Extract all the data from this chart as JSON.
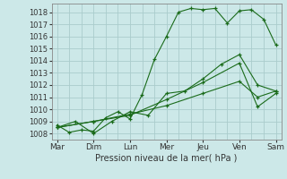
{
  "xlabel": "Pression niveau de la mer( hPa )",
  "bg_color": "#cce8e8",
  "grid_color": "#aacccc",
  "line_color": "#1a6b1a",
  "xtick_labels": [
    "Mar",
    "Dim",
    "Lun",
    "Mer",
    "Jeu",
    "Ven",
    "Sam"
  ],
  "xlim": [
    -0.15,
    6.15
  ],
  "ylim": [
    1007.5,
    1018.7
  ],
  "yticks": [
    1008,
    1009,
    1010,
    1011,
    1012,
    1013,
    1014,
    1015,
    1016,
    1017,
    1018
  ],
  "series": [
    {
      "x": [
        0,
        0.33,
        0.67,
        1.0,
        1.33,
        1.67,
        2.0,
        2.33,
        2.67,
        3.0,
        3.33,
        3.67,
        4.0,
        4.33,
        4.67,
        5.0,
        5.33,
        5.67,
        6.0
      ],
      "y": [
        1008.7,
        1008.1,
        1008.3,
        1008.2,
        1009.3,
        1009.8,
        1009.2,
        1011.2,
        1014.1,
        1016.0,
        1018.0,
        1018.3,
        1018.2,
        1018.3,
        1017.1,
        1018.1,
        1018.2,
        1017.4,
        1015.3
      ]
    },
    {
      "x": [
        0,
        0.5,
        1.0,
        1.5,
        2.0,
        2.5,
        3.0,
        3.5,
        4.0,
        4.5,
        5.0,
        5.5,
        6.0
      ],
      "y": [
        1008.5,
        1009.0,
        1008.0,
        1009.0,
        1009.8,
        1009.5,
        1011.3,
        1011.5,
        1012.5,
        1013.7,
        1014.5,
        1012.0,
        1011.5
      ]
    },
    {
      "x": [
        0,
        1.0,
        2.0,
        3.0,
        4.0,
        5.0,
        5.5,
        6.0
      ],
      "y": [
        1008.5,
        1009.0,
        1009.5,
        1010.8,
        1012.2,
        1013.8,
        1010.2,
        1011.3
      ]
    },
    {
      "x": [
        0,
        1.0,
        2.0,
        3.0,
        4.0,
        5.0,
        5.5,
        6.0
      ],
      "y": [
        1008.5,
        1009.0,
        1009.6,
        1010.3,
        1011.3,
        1012.3,
        1011.0,
        1011.5
      ]
    }
  ]
}
